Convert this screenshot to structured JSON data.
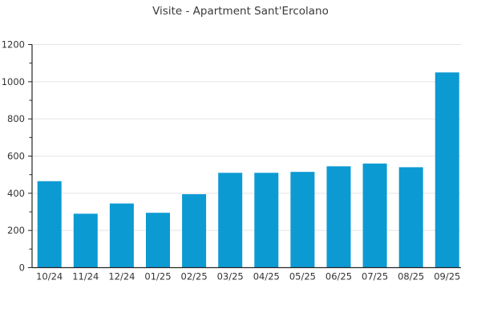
{
  "page": {
    "background_color": "#ffffff"
  },
  "chart_data": {
    "type": "bar",
    "title": "Visite - Apartment Sant'Ercolano",
    "xlabel": "",
    "ylabel": "",
    "categories": [
      "10/24",
      "11/24",
      "12/24",
      "01/25",
      "02/25",
      "03/25",
      "04/25",
      "05/25",
      "06/25",
      "07/25",
      "08/25",
      "09/25"
    ],
    "values": [
      465,
      290,
      345,
      295,
      395,
      510,
      510,
      515,
      545,
      560,
      540,
      1050
    ],
    "ylim": [
      0,
      1200
    ],
    "yticks": [
      0,
      200,
      400,
      600,
      800,
      1000,
      1200
    ],
    "minor_tick_step": 100,
    "grid": "horizontal-major",
    "legend_position": "none",
    "colors": {
      "bar": "#0c9ad3",
      "gridline": "#e5e5e5",
      "axis": "#262626",
      "tick": "#333333",
      "title_text": "#3a3a3a",
      "label_text": "#333333",
      "background": "#ffffff"
    }
  }
}
